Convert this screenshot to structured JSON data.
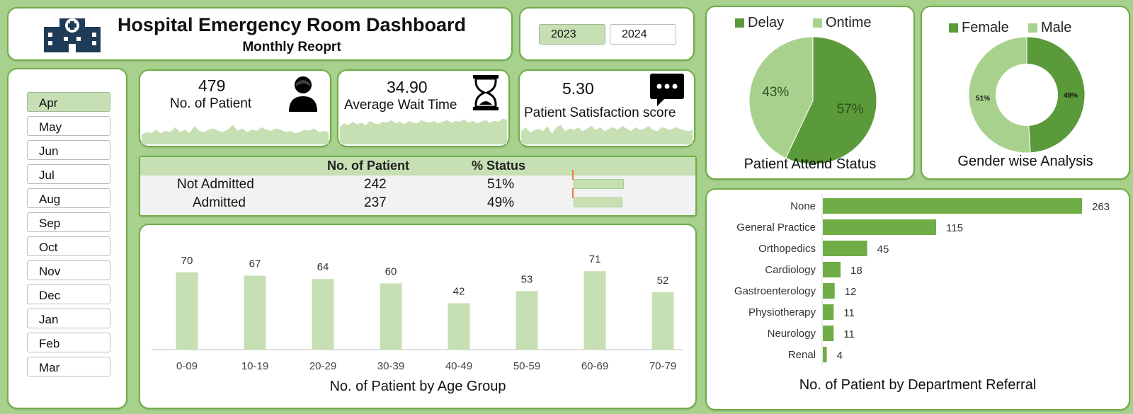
{
  "header": {
    "title": "Hospital Emergency Room Dashboard",
    "subtitle": "Monthly Reoprt"
  },
  "icons": {
    "title": "hospital-icon",
    "patient": "patient-icon",
    "wait": "hourglass-icon",
    "satisfaction": "chat-bubble-icon"
  },
  "colors": {
    "background": "#a9d18e",
    "accent": "#70ad47",
    "light": "#c6e0b4",
    "dark": "#5b9a3a",
    "orange": "#ed7d31"
  },
  "years": {
    "items": [
      "2023",
      "2024"
    ],
    "selected": "2023"
  },
  "months": {
    "items": [
      "Apr",
      "May",
      "Jun",
      "Jul",
      "Aug",
      "Sep",
      "Oct",
      "Nov",
      "Dec",
      "Jan",
      "Feb",
      "Mar"
    ],
    "selected": "Apr"
  },
  "kpis": {
    "patients": {
      "value": "479",
      "label": "No. of Patient"
    },
    "wait": {
      "value": "34.90",
      "label": "Average Wait Time"
    },
    "satisfaction": {
      "value": "5.30",
      "label": "Patient Satisfaction score"
    }
  },
  "admission": {
    "headers": [
      "No. of Patient",
      "% Status"
    ],
    "rows": [
      {
        "label": "Not Admitted",
        "count": "242",
        "pct": "51%",
        "fraction": 0.51
      },
      {
        "label": "Admitted",
        "count": "237",
        "pct": "49%",
        "fraction": 0.49
      }
    ]
  },
  "chart_data": [
    {
      "type": "area",
      "name": "patients-sparkline",
      "values": [
        8,
        10,
        9,
        12,
        9,
        11,
        10,
        14,
        10,
        12,
        9,
        15,
        11,
        10,
        12,
        13,
        11,
        10,
        12,
        16,
        11,
        13,
        10,
        12,
        11,
        14,
        12,
        11,
        13,
        12,
        10,
        11,
        9,
        10,
        12,
        11,
        13,
        10,
        11,
        10
      ]
    },
    {
      "type": "area",
      "name": "wait-sparkline",
      "values": [
        22,
        26,
        24,
        28,
        25,
        27,
        24,
        29,
        26,
        25,
        28,
        27,
        30,
        26,
        28,
        25,
        29,
        27,
        26,
        30,
        28,
        27,
        29,
        26,
        28,
        30,
        27,
        29,
        28,
        31,
        27,
        29,
        26,
        28,
        30,
        27,
        29,
        28,
        32,
        30
      ]
    },
    {
      "type": "area",
      "name": "satisfaction-sparkline",
      "values": [
        20,
        26,
        18,
        22,
        24,
        20,
        28,
        16,
        26,
        30,
        20,
        24,
        22,
        26,
        20,
        24,
        28,
        22,
        26,
        20,
        24,
        26,
        22,
        28,
        24,
        20,
        26,
        22,
        24,
        28,
        22,
        20,
        26,
        24,
        22,
        26,
        24,
        22,
        20,
        22
      ]
    },
    {
      "type": "pie",
      "title": "Patient Attend Status",
      "labels": [
        "Delay",
        "Ontime"
      ],
      "values": [
        57,
        43
      ],
      "value_labels": [
        "57%",
        "43%"
      ],
      "legend": "top"
    },
    {
      "type": "pie",
      "subtype": "donut",
      "title": "Gender wise Analysis",
      "labels": [
        "Female",
        "Male"
      ],
      "values": [
        49,
        51
      ],
      "value_labels": [
        "49%",
        "51%"
      ],
      "legend": "top"
    },
    {
      "type": "bar",
      "orientation": "vertical",
      "title": "No. of Patient by Age Group",
      "categories": [
        "0-09",
        "10-19",
        "20-29",
        "30-39",
        "40-49",
        "50-59",
        "60-69",
        "70-79"
      ],
      "values": [
        70,
        67,
        64,
        60,
        42,
        53,
        71,
        52
      ],
      "ylim": [
        0,
        100
      ],
      "grid": false
    },
    {
      "type": "bar",
      "orientation": "horizontal",
      "title": "No. of Patient by Department Referral",
      "categories": [
        "None",
        "General Practice",
        "Orthopedics",
        "Cardiology",
        "Gastroenterology",
        "Physiotherapy",
        "Neurology",
        "Renal"
      ],
      "values": [
        263,
        115,
        45,
        18,
        12,
        11,
        11,
        4
      ],
      "xlim": [
        0,
        263
      ],
      "grid": false
    }
  ]
}
